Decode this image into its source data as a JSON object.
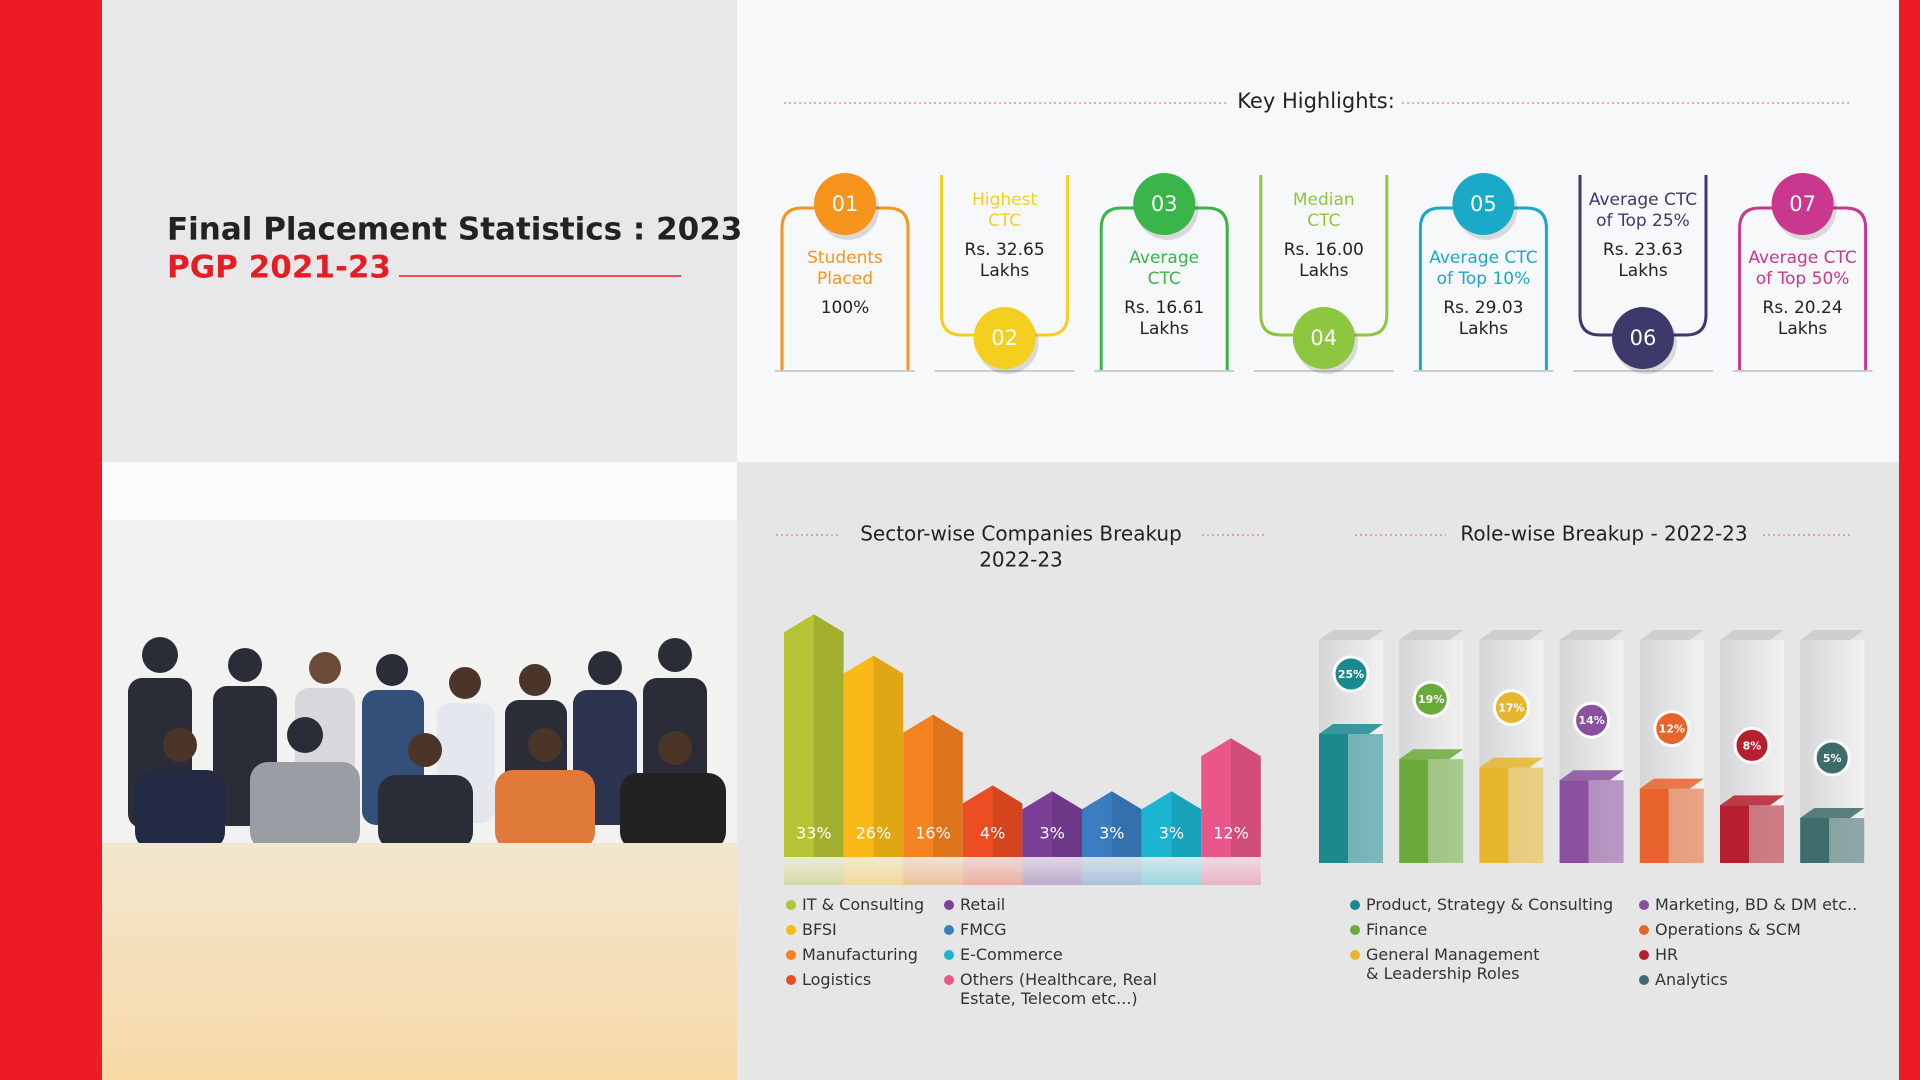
{
  "header": {
    "title": "Final Placement Statistics : 2023",
    "subtitle": "PGP 2021-23"
  },
  "highlights": {
    "title": "Key Highlights:",
    "items": [
      {
        "number": "01",
        "label": [
          "Students",
          "Placed"
        ],
        "value": [
          "100%"
        ],
        "color": "#f7941d"
      },
      {
        "number": "02",
        "label": [
          "Highest",
          "CTC"
        ],
        "value": [
          "Rs. 32.65",
          "Lakhs"
        ],
        "color": "#f5cf1f"
      },
      {
        "number": "03",
        "label": [
          "Average",
          "CTC"
        ],
        "value": [
          "Rs. 16.61",
          "Lakhs"
        ],
        "color": "#39b54a"
      },
      {
        "number": "04",
        "label": [
          "Median",
          "CTC"
        ],
        "value": [
          "Rs. 16.00",
          "Lakhs"
        ],
        "color": "#8dc63f"
      },
      {
        "number": "05",
        "label": [
          "Average CTC",
          "of Top 10%"
        ],
        "value": [
          "Rs. 29.03",
          "Lakhs"
        ],
        "color": "#1ba9c8"
      },
      {
        "number": "06",
        "label": [
          "Average CTC",
          "of Top 25%"
        ],
        "value": [
          "Rs. 23.63",
          "Lakhs"
        ],
        "color": "#3d3a6b"
      },
      {
        "number": "07",
        "label": [
          "Average CTC",
          "of Top 50%"
        ],
        "value": [
          "Rs. 20.24",
          "Lakhs"
        ],
        "color": "#c9378f"
      }
    ]
  },
  "chart_data": [
    {
      "type": "bar",
      "title": "Sector-wise Companies Breakup",
      "subtitle": "2022-23",
      "categories": [
        "IT & Consulting",
        "BFSI",
        "Manufacturing",
        "Logistics",
        "Retail",
        "FMCG",
        "E-Commerce",
        "Others (Healthcare, Real Estate, Telecom etc...)"
      ],
      "values": [
        33,
        26,
        16,
        4,
        3,
        3,
        3,
        12
      ],
      "value_labels": [
        "33%",
        "26%",
        "16%",
        "4%",
        "3%",
        "3%",
        "3%",
        "12%"
      ],
      "colors": [
        "#b5c334",
        "#fbb917",
        "#f58220",
        "#ec4d22",
        "#7b3f98",
        "#3a7dc1",
        "#1bb5d1",
        "#e9578a"
      ]
    },
    {
      "type": "bar3d",
      "title": "Role-wise Breakup - 2022-23",
      "categories": [
        "Product, Strategy & Consulting",
        "Finance",
        "General Management & Leadership Roles",
        "Marketing, BD & DM etc..",
        "Operations & SCM",
        "HR",
        "Analytics"
      ],
      "values": [
        25,
        19,
        17,
        14,
        12,
        8,
        5
      ],
      "value_labels": [
        "25%",
        "19%",
        "17%",
        "14%",
        "12%",
        "8%",
        "5%"
      ],
      "colors": [
        "#1a8a8f",
        "#6aaa3a",
        "#e8b62c",
        "#8a4f9e",
        "#e8642c",
        "#b51f2e",
        "#3e6b6b"
      ]
    }
  ]
}
